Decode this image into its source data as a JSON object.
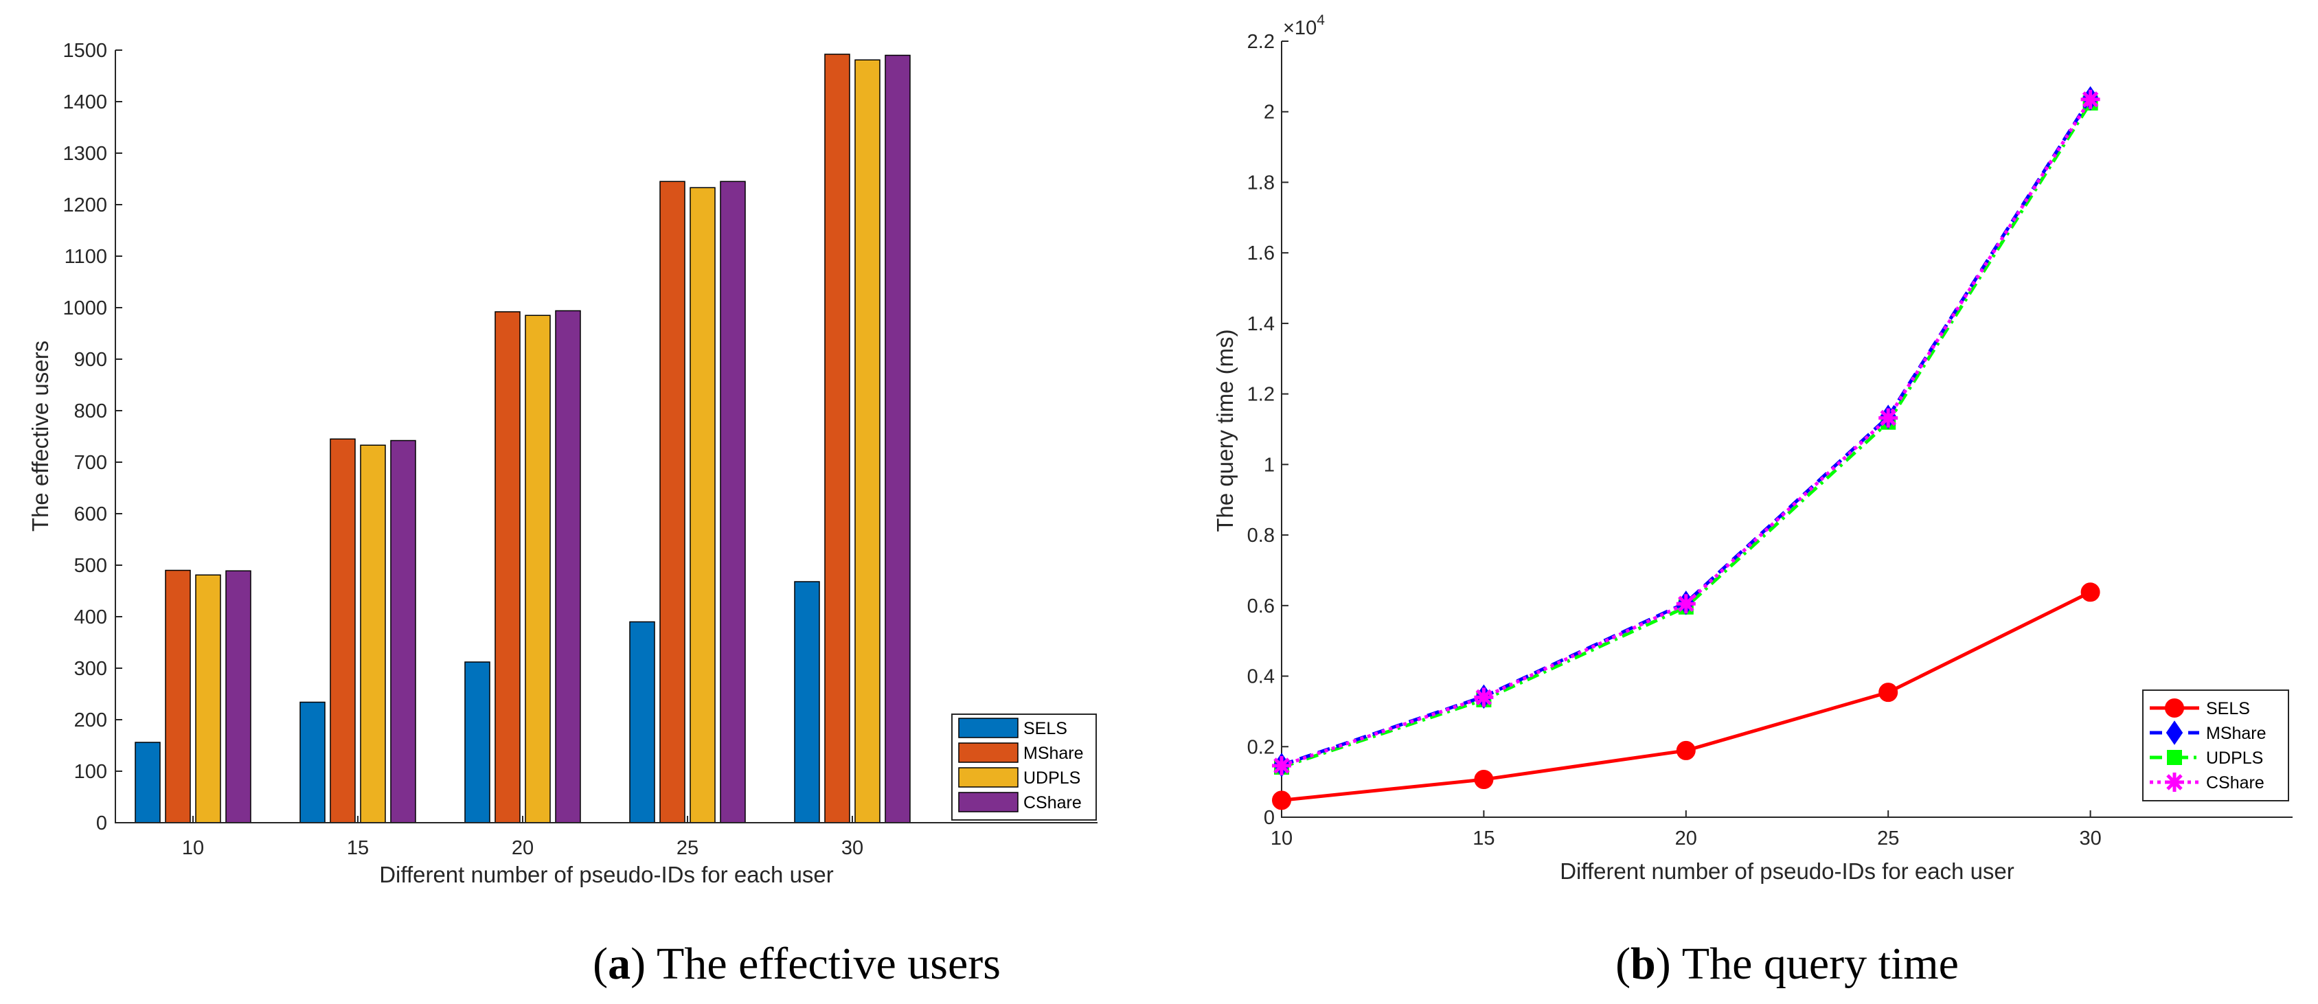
{
  "chart_data": [
    {
      "type": "bar",
      "title": "",
      "xlabel": "Different number of pseudo-IDs for each user",
      "ylabel": "The effective users",
      "categories": [
        "10",
        "15",
        "20",
        "25",
        "30"
      ],
      "series": [
        {
          "name": "SELS",
          "color": "#0072BD",
          "values": [
            156,
            234,
            312,
            390,
            468
          ]
        },
        {
          "name": "MShare",
          "color": "#D95319",
          "values": [
            490,
            745,
            992,
            1245,
            1492
          ]
        },
        {
          "name": "UDPLS",
          "color": "#EDB120",
          "values": [
            481,
            733,
            985,
            1233,
            1481
          ]
        },
        {
          "name": "CShare",
          "color": "#7E2F8E",
          "values": [
            489,
            742,
            994,
            1245,
            1490
          ]
        }
      ],
      "ylim": [
        0,
        1500
      ],
      "yticks": [
        "0",
        "100",
        "200",
        "300",
        "400",
        "500",
        "600",
        "700",
        "800",
        "900",
        "1000",
        "1100",
        "1200",
        "1300",
        "1400",
        "1500"
      ],
      "legend": "bottom-right",
      "caption_label": "(a)",
      "caption_text": "The effective users"
    },
    {
      "type": "line",
      "title": "",
      "xlabel": "Different number of pseudo-IDs for each user",
      "ylabel": "The query time (ms)",
      "x": [
        10,
        15,
        20,
        25,
        30
      ],
      "xlim": [
        10,
        35
      ],
      "xticks": [
        "10",
        "15",
        "20",
        "25",
        "30"
      ],
      "ylim": [
        0,
        22000
      ],
      "yticks": [
        "0",
        "0.2",
        "0.4",
        "0.6",
        "0.8",
        "1",
        "1.2",
        "1.4",
        "1.6",
        "1.8",
        "2",
        "2.2"
      ],
      "exponent_base": "×10",
      "exponent_power": "4",
      "series": [
        {
          "name": "SELS",
          "color": "#FF0000",
          "marker": "circle",
          "dash": "solid",
          "values": [
            480,
            1070,
            1890,
            3540,
            6380
          ]
        },
        {
          "name": "MShare",
          "color": "#0000FF",
          "marker": "diamond",
          "dash": "dashed",
          "values": [
            1480,
            3420,
            6080,
            11350,
            20380
          ]
        },
        {
          "name": "UDPLS",
          "color": "#00FF00",
          "marker": "square",
          "dash": "dashdot",
          "values": [
            1420,
            3330,
            5960,
            11200,
            20250
          ]
        },
        {
          "name": "CShare",
          "color": "#FF00FF",
          "marker": "asterisk",
          "dash": "dotted",
          "values": [
            1460,
            3400,
            6050,
            11320,
            20350
          ]
        }
      ],
      "legend": "bottom-right",
      "caption_label": "(b)",
      "caption_text": "The query time"
    }
  ]
}
